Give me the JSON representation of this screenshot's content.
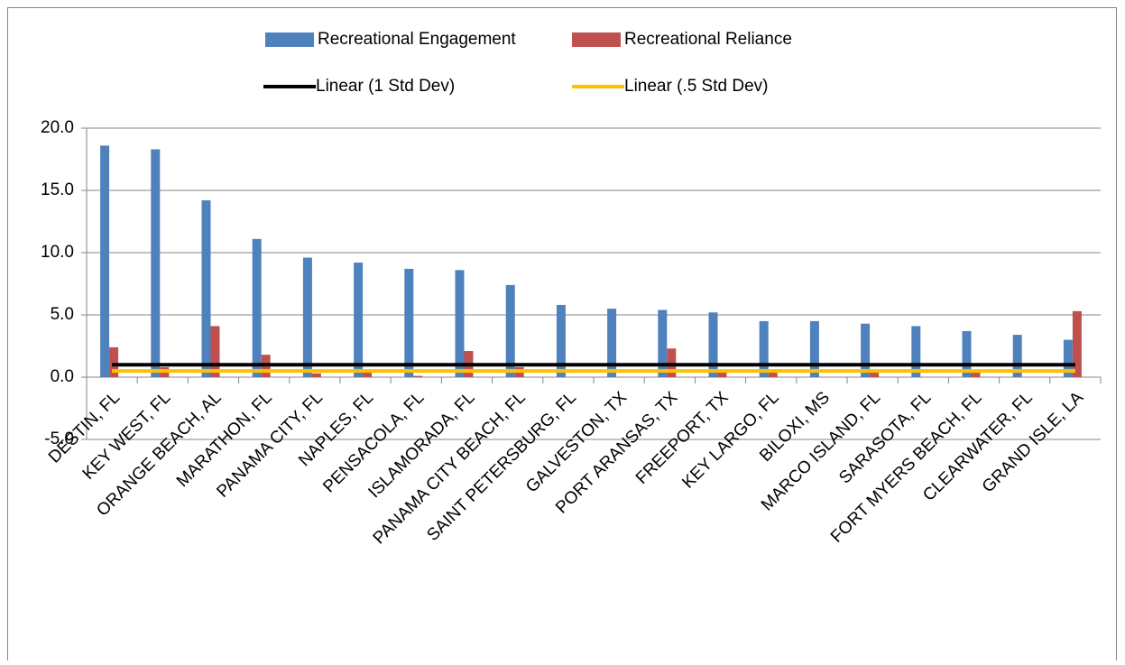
{
  "chart_data": {
    "type": "bar",
    "categories": [
      "DESTIN, FL",
      "KEY WEST, FL",
      "ORANGE BEACH, AL",
      "MARATHON, FL",
      "PANAMA CITY, FL",
      "NAPLES, FL",
      "PENSACOLA, FL",
      "ISLAMORADA, FL",
      "PANAMA CITY BEACH, FL",
      "SAINT PETERSBURG, FL",
      "GALVESTON, TX",
      "PORT ARANSAS, TX",
      "FREEPORT, TX",
      "KEY LARGO, FL",
      "BILOXI, MS",
      "MARCO ISLAND, FL",
      "SARASOTA, FL",
      "FORT MYERS BEACH, FL",
      "CLEARWATER, FL",
      "GRAND ISLE, LA"
    ],
    "series": [
      {
        "name": "Recreational Engagement",
        "color": "#4f81bd",
        "type": "bar",
        "values": [
          18.6,
          18.3,
          14.2,
          11.1,
          9.6,
          9.2,
          8.7,
          8.6,
          7.4,
          5.8,
          5.5,
          5.4,
          5.2,
          4.5,
          4.5,
          4.3,
          4.1,
          3.7,
          3.4,
          3.0
        ]
      },
      {
        "name": "Recreational Reliance",
        "color": "#c0504d",
        "type": "bar",
        "values": [
          2.4,
          0.8,
          4.1,
          1.8,
          0.3,
          0.4,
          0.1,
          2.1,
          0.8,
          0.0,
          0.0,
          2.3,
          0.4,
          0.4,
          0.0,
          0.4,
          0.0,
          0.4,
          0.0,
          5.3
        ]
      },
      {
        "name": "Linear (1 Std Dev)",
        "color": "#000000",
        "type": "line",
        "values": [
          1,
          1,
          1,
          1,
          1,
          1,
          1,
          1,
          1,
          1,
          1,
          1,
          1,
          1,
          1,
          1,
          1,
          1,
          1,
          1
        ]
      },
      {
        "name": "Linear (.5 Std Dev)",
        "color": "#ffc000",
        "type": "line",
        "values": [
          0.5,
          0.5,
          0.5,
          0.5,
          0.5,
          0.5,
          0.5,
          0.5,
          0.5,
          0.5,
          0.5,
          0.5,
          0.5,
          0.5,
          0.5,
          0.5,
          0.5,
          0.5,
          0.5,
          0.5
        ]
      }
    ],
    "ylim": [
      -5,
      20
    ],
    "yticks": [
      {
        "value": -5,
        "label": "-5.0"
      },
      {
        "value": 0,
        "label": "0.0"
      },
      {
        "value": 5,
        "label": "5.0"
      },
      {
        "value": 10,
        "label": "10.0"
      },
      {
        "value": 15,
        "label": "15.0"
      },
      {
        "value": 20,
        "label": "20.0"
      }
    ],
    "grid": true
  }
}
